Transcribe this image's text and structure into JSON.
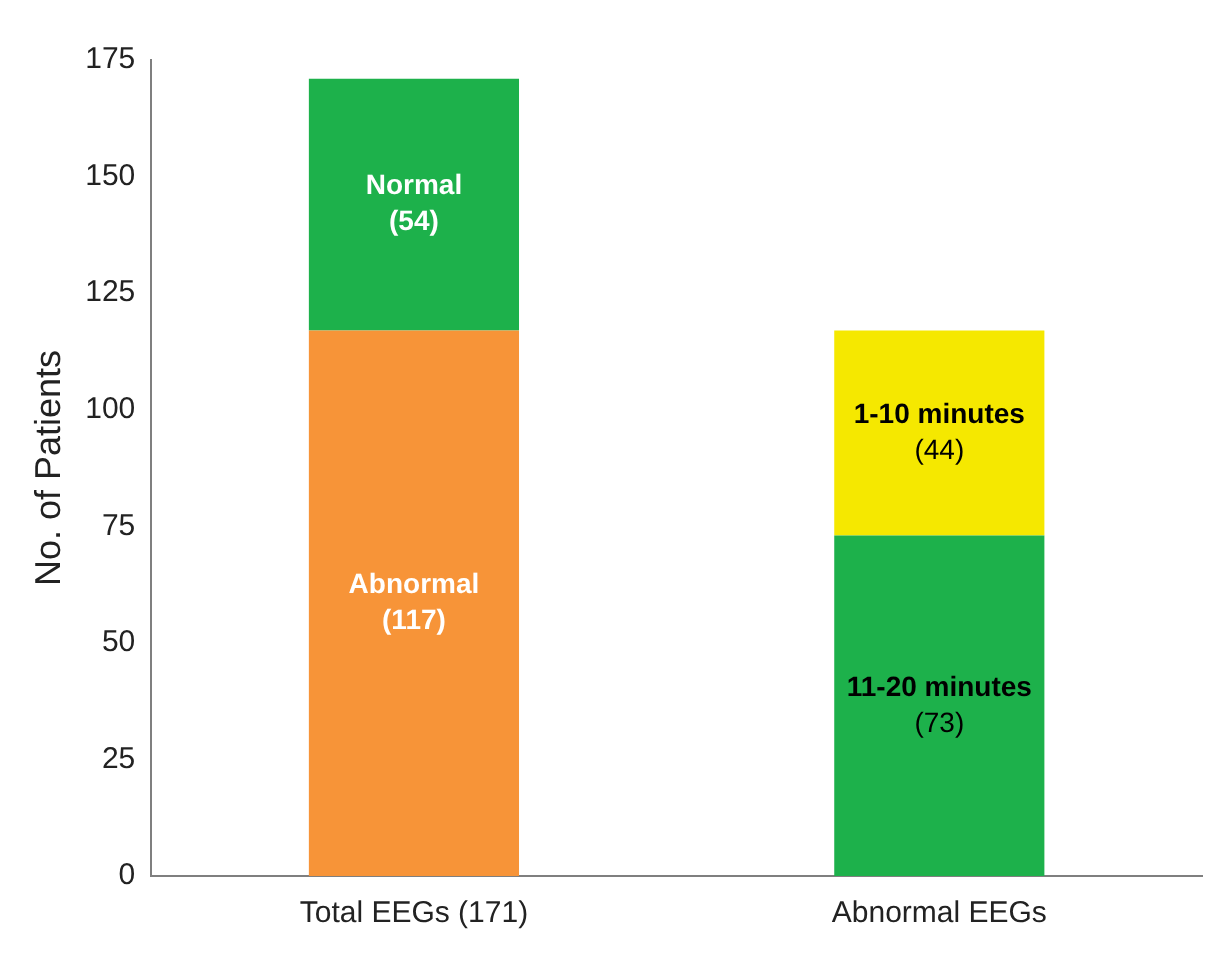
{
  "chart_data": {
    "type": "bar",
    "stacked": true,
    "ylabel": "No. of Patients",
    "categories": [
      "Total EEGs (171)",
      "Abnormal EEGs"
    ],
    "series": [
      {
        "name": "Abnormal",
        "color": "#f79438",
        "values": [
          117,
          null
        ],
        "value_labels": [
          "(117)",
          null
        ]
      },
      {
        "name": "Normal",
        "color": "#1db14b",
        "values": [
          54,
          null
        ],
        "value_labels": [
          "(54)",
          null
        ]
      },
      {
        "name": "11-20 minutes",
        "color": "#1db14b",
        "values": [
          null,
          73
        ],
        "value_labels": [
          null,
          "(73)"
        ]
      },
      {
        "name": "1-10 minutes",
        "color": "#f5e800",
        "values": [
          null,
          44
        ],
        "value_labels": [
          null,
          "(44)"
        ]
      }
    ],
    "ylim": [
      0,
      175
    ],
    "yticks": [
      0,
      25,
      50,
      75,
      100,
      125,
      150,
      175
    ],
    "grid": false,
    "legend": false
  }
}
